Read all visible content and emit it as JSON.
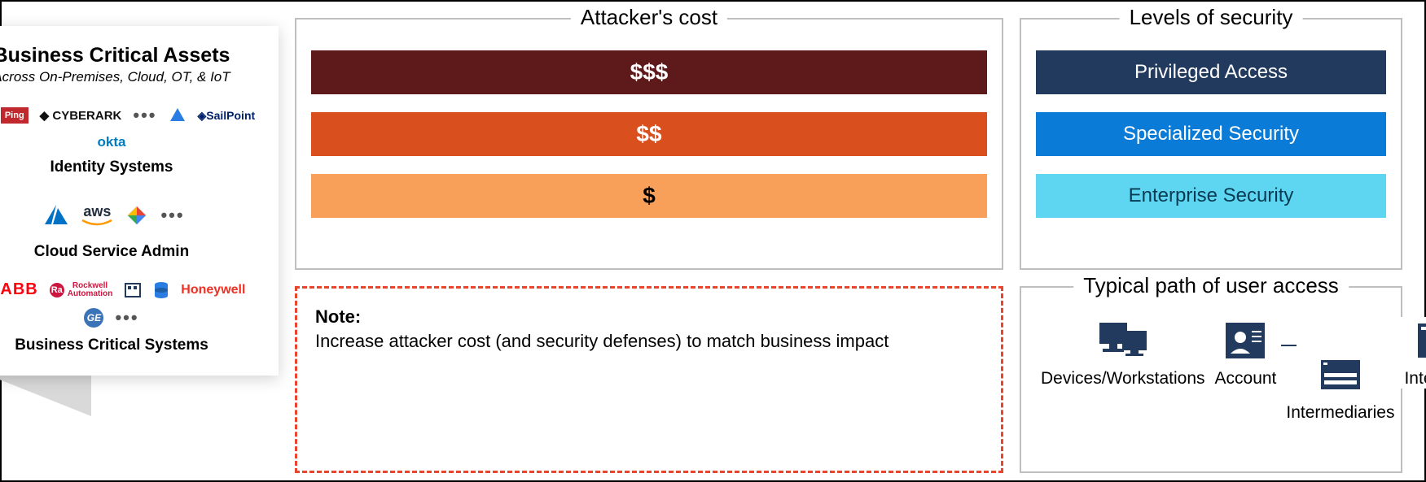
{
  "attacker_cost": {
    "title": "Attacker's cost",
    "bars": [
      {
        "label": "$$$",
        "bg": "#5e1a1a",
        "fg": "#ffffff"
      },
      {
        "label": "$$",
        "bg": "#d94f1e",
        "fg": "#ffffff"
      },
      {
        "label": "$",
        "bg": "#f8a05a",
        "fg": "#000000"
      }
    ]
  },
  "security_levels": {
    "title": "Levels of security",
    "bars": [
      {
        "label": "Privileged Access",
        "bg": "#223a5e",
        "fg": "#ffffff"
      },
      {
        "label": "Specialized Security",
        "bg": "#0a7bd6",
        "fg": "#ffffff"
      },
      {
        "label": "Enterprise Security",
        "bg": "#5ed6f2",
        "fg": "#083a52"
      }
    ]
  },
  "note": {
    "heading": "Note:",
    "body": "Increase attacker cost (and security defenses) to match business impact"
  },
  "access_path": {
    "title": "Typical path of user access",
    "icon_color": "#223a5e",
    "items": {
      "devices": "Devices/Workstations",
      "account": "Account",
      "intermediaries": "Intermediaries",
      "interface": "Interface"
    }
  },
  "assets": {
    "title": "Business Critical Assets",
    "subtitle": "Across On-Premises, Cloud, OT, & IoT",
    "cone_color": "#d9d9d9",
    "groups": [
      {
        "name": "Identity Systems",
        "logos": [
          "azure-ad",
          "ping",
          "cyberark",
          "ad",
          "sailpoint",
          "okta"
        ],
        "colors": {
          "azure-ad": "#3fb2e8",
          "ping": "#c1282d",
          "cyberark": "#111111",
          "ad": "#2a7de1",
          "sailpoint": "#012169",
          "okta": "#007dc1"
        }
      },
      {
        "name": "Cloud Service Admin",
        "logos": [
          "azure",
          "aws",
          "gcp"
        ],
        "colors": {
          "azure": "#0072c6",
          "aws": "#232f3e",
          "aws_accent": "#ff9900",
          "gcp_blue": "#4285f4",
          "gcp_red": "#ea4335",
          "gcp_yellow": "#fbbc05",
          "gcp_green": "#34a853"
        }
      },
      {
        "name": "Business Critical Systems",
        "logos": [
          "scada",
          "abb",
          "rockwell",
          "db",
          "honeywell",
          "ge"
        ],
        "colors": {
          "scada": "#1a4fa0",
          "abb": "#ff000f",
          "rockwell": "#cd163f",
          "db": "#2a7de1",
          "honeywell": "#ee3124",
          "ge": "#3b73b9"
        }
      }
    ]
  },
  "ellipsis": "•••"
}
